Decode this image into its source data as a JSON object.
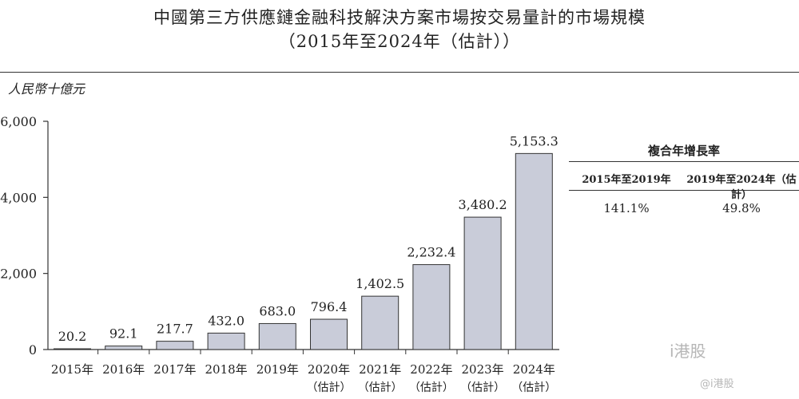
{
  "title_line1": "中國第三方供應鏈金融科技解決方案市場按交易量計的市場規模",
  "title_line2": "（2015年至2024年（估計））",
  "unit": "人民幣十億元",
  "growth_table": {
    "title": "複合年增長率",
    "columns": [
      "2015年至2019年",
      "2019年至2024年（估計）"
    ],
    "values": [
      "141.1%",
      "49.8%"
    ]
  },
  "watermark": "i港股",
  "watermark_sub": "@i港股",
  "chart_data": {
    "type": "bar",
    "categories": [
      "2015年",
      "2016年",
      "2017年",
      "2018年",
      "2019年",
      "2020年",
      "2021年",
      "2022年",
      "2023年",
      "2024年"
    ],
    "category_notes": [
      "",
      "",
      "",
      "",
      "",
      "（估計）",
      "（估計）",
      "（估計）",
      "（估計）",
      "（估計）"
    ],
    "values": [
      20.2,
      92.1,
      217.7,
      432.0,
      683.0,
      796.4,
      1402.5,
      2232.4,
      3480.2,
      5153.3
    ],
    "value_labels": [
      "20.2",
      "92.1",
      "217.7",
      "432.0",
      "683.0",
      "796.4",
      "1,402.5",
      "2,232.4",
      "3,480.2",
      "5,153.3"
    ],
    "yticks": [
      0,
      2000,
      4000,
      6000
    ],
    "ytick_labels": [
      "0",
      "2,000",
      "4,000",
      "6,000"
    ],
    "ylim": [
      0,
      6000
    ],
    "ylabel": "人民幣十億元",
    "bar_color": "#c9ccd9",
    "grid": false
  }
}
